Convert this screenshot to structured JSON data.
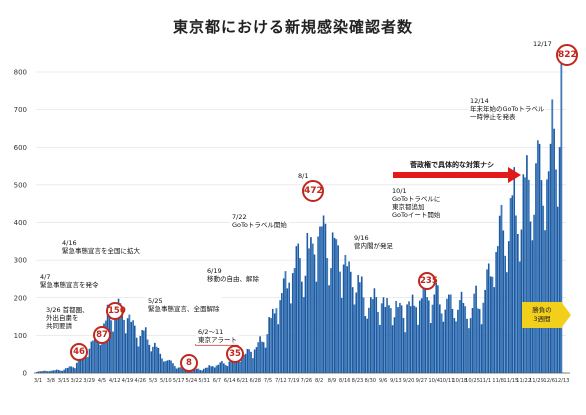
{
  "page": {
    "title": "東京都における新規感染確認者数"
  },
  "chart_data": {
    "type": "bar",
    "title": "東京都における新規感染確認者数",
    "xlabel": "",
    "ylabel": "",
    "ylim": [
      0,
      850
    ],
    "yticks": [
      0,
      100,
      200,
      300,
      400,
      500,
      600,
      700,
      800
    ],
    "grid": true,
    "bar_color": "#1f5b9e",
    "xticks": [
      "3/1",
      "3/8",
      "3/15",
      "3/22",
      "3/29",
      "4/5",
      "4/12",
      "4/19",
      "4/26",
      "5/3",
      "5/10",
      "5/17",
      "5/24",
      "5/31",
      "6/7",
      "6/14",
      "6/21",
      "6/28",
      "7/5",
      "7/12",
      "7/19",
      "7/26",
      "8/2",
      "8/9",
      "8/16",
      "8/23",
      "8/30",
      "9/6",
      "9/13",
      "9/20",
      "9/27",
      "10/4",
      "10/11",
      "10/18",
      "10/25",
      "11/1",
      "11/8",
      "11/15",
      "11/22",
      "11/29",
      "12/6",
      "12/13"
    ],
    "weekly_levels": [
      4,
      6,
      8,
      20,
      60,
      110,
      170,
      150,
      110,
      80,
      40,
      15,
      10,
      10,
      20,
      28,
      45,
      60,
      100,
      200,
      260,
      290,
      380,
      330,
      280,
      230,
      180,
      180,
      170,
      170,
      190,
      200,
      190,
      180,
      170,
      190,
      290,
      400,
      430,
      480,
      520,
      610
    ],
    "final_values": [
      600,
      822
    ],
    "annotations": [
      {
        "id": "a1",
        "date": "3/26",
        "value": 46,
        "text": "3/26 首都圏、外出自粛を共同要請"
      },
      {
        "id": "a2",
        "date": "4/7",
        "value": 87,
        "text": "4/7 緊急事態宣言を発令"
      },
      {
        "id": "a3",
        "date": "4/16",
        "value": 150,
        "text": "4/16 緊急事態宣言を全国に拡大"
      },
      {
        "id": "a4",
        "date": "5/25",
        "value": 8,
        "text": "5/25 緊急事態宣言、全面解除"
      },
      {
        "id": "a5",
        "date": "6/2",
        "value": 35,
        "text": "6/2～11 東京アラート"
      },
      {
        "id": "a6",
        "date": "6/19",
        "text": "6/19 移動の自由、解除"
      },
      {
        "id": "a7",
        "date": "7/22",
        "text": "7/22 GoToトラベル開始"
      },
      {
        "id": "a8",
        "date": "8/1",
        "value": 472,
        "text": "8/1"
      },
      {
        "id": "a9",
        "date": "9/16",
        "text": "9/16 菅内閣が発足"
      },
      {
        "id": "a10",
        "date": "10/1",
        "value": 235,
        "text": "10/1 GoToトラベルに東京都追加 GoToイート開始"
      },
      {
        "id": "a11",
        "date": "12/14",
        "text": "12/14 年末年始のGoToトラベル一時停止を発表"
      },
      {
        "id": "a12",
        "date": "12/17",
        "value": 822,
        "text": "12/17"
      }
    ],
    "callouts": {
      "no_plan": "菅政権で具体的な対策ナシ",
      "badge": [
        "勝負の",
        "3週間"
      ]
    }
  }
}
